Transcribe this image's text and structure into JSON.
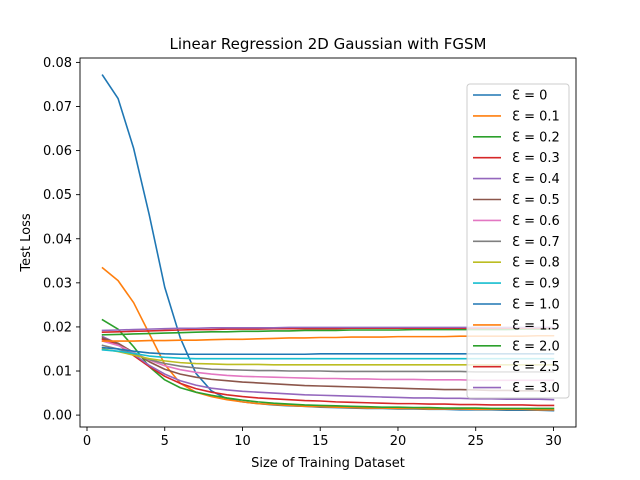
{
  "chart_data": {
    "type": "line",
    "title": "Linear Regression 2D Gaussian with FGSM",
    "xlabel": "Size of Training Dataset",
    "ylabel": "Test Loss",
    "xlim": [
      -0.45,
      31.45
    ],
    "ylim": [
      -0.0027,
      0.081
    ],
    "xticks": [
      0,
      5,
      10,
      15,
      20,
      25,
      30
    ],
    "yticks": [
      0.0,
      0.01,
      0.02,
      0.03,
      0.04,
      0.05,
      0.06,
      0.07,
      0.08
    ],
    "ytick_labels": [
      "0.00",
      "0.01",
      "0.02",
      "0.03",
      "0.04",
      "0.05",
      "0.06",
      "0.07",
      "0.08"
    ],
    "grid": false,
    "legend_position": "right",
    "x": [
      1,
      2,
      3,
      4,
      5,
      6,
      7,
      8,
      9,
      10,
      11,
      12,
      13,
      14,
      15,
      16,
      17,
      18,
      19,
      20,
      21,
      22,
      23,
      24,
      25,
      26,
      27,
      28,
      29,
      30
    ],
    "series": [
      {
        "name": "Ɛ = 0",
        "color": "#1f77b4",
        "values": [
          0.0771,
          0.0718,
          0.0605,
          0.0455,
          0.029,
          0.0175,
          0.0095,
          0.0055,
          0.0037,
          0.003,
          0.0026,
          0.0023,
          0.0021,
          0.002,
          0.0018,
          0.0017,
          0.0016,
          0.0015,
          0.0015,
          0.0014,
          0.0014,
          0.0013,
          0.0013,
          0.0012,
          0.0012,
          0.0012,
          0.0011,
          0.0011,
          0.0011,
          0.001
        ]
      },
      {
        "name": "Ɛ = 0.1",
        "color": "#ff7f0e",
        "values": [
          0.0334,
          0.0305,
          0.0255,
          0.0185,
          0.0115,
          0.0072,
          0.0052,
          0.0042,
          0.0035,
          0.003,
          0.0026,
          0.0024,
          0.0022,
          0.002,
          0.0019,
          0.0018,
          0.0017,
          0.0016,
          0.0016,
          0.0015,
          0.0015,
          0.0014,
          0.0014,
          0.0014,
          0.0013,
          0.0013,
          0.0013,
          0.0013,
          0.0012,
          0.0012
        ]
      },
      {
        "name": "Ɛ = 0.2",
        "color": "#2ca02c",
        "values": [
          0.0216,
          0.0195,
          0.0155,
          0.011,
          0.008,
          0.0062,
          0.0052,
          0.0045,
          0.0039,
          0.0034,
          0.003,
          0.0027,
          0.0025,
          0.0023,
          0.0022,
          0.0021,
          0.002,
          0.0019,
          0.0018,
          0.0018,
          0.0017,
          0.0017,
          0.0016,
          0.0016,
          0.0016,
          0.0015,
          0.0015,
          0.0015,
          0.0015,
          0.0015
        ]
      },
      {
        "name": "Ɛ = 0.3",
        "color": "#d62728",
        "values": [
          0.0172,
          0.016,
          0.0135,
          0.011,
          0.0088,
          0.0072,
          0.006,
          0.0052,
          0.0046,
          0.0042,
          0.0039,
          0.0037,
          0.0035,
          0.0033,
          0.0032,
          0.003,
          0.0029,
          0.0028,
          0.0027,
          0.0026,
          0.0026,
          0.0025,
          0.0025,
          0.0024,
          0.0024,
          0.0023,
          0.0023,
          0.0023,
          0.0022,
          0.0022
        ]
      },
      {
        "name": "Ɛ = 0.4",
        "color": "#9467bd",
        "values": [
          0.0178,
          0.0162,
          0.0138,
          0.0113,
          0.0093,
          0.0078,
          0.0068,
          0.0061,
          0.0057,
          0.0054,
          0.0052,
          0.005,
          0.0048,
          0.0046,
          0.0045,
          0.0044,
          0.0043,
          0.0042,
          0.0041,
          0.004,
          0.0039,
          0.0039,
          0.0038,
          0.0038,
          0.0037,
          0.0037,
          0.0036,
          0.0036,
          0.0036,
          0.0035
        ]
      },
      {
        "name": "Ɛ = 0.5",
        "color": "#8c564b",
        "values": [
          0.0175,
          0.0163,
          0.0142,
          0.0121,
          0.0104,
          0.0093,
          0.0086,
          0.0081,
          0.0078,
          0.0075,
          0.0073,
          0.0071,
          0.0069,
          0.0067,
          0.0066,
          0.0065,
          0.0064,
          0.0063,
          0.0062,
          0.0061,
          0.006,
          0.0059,
          0.0058,
          0.0058,
          0.0057,
          0.0056,
          0.0056,
          0.0055,
          0.0055,
          0.0055
        ]
      },
      {
        "name": "Ɛ = 0.6",
        "color": "#e377c2",
        "values": [
          0.0168,
          0.0158,
          0.0142,
          0.0125,
          0.0112,
          0.0103,
          0.0097,
          0.0093,
          0.009,
          0.0088,
          0.0087,
          0.0086,
          0.0085,
          0.0084,
          0.0083,
          0.0083,
          0.0082,
          0.0082,
          0.0081,
          0.0081,
          0.0081,
          0.008,
          0.008,
          0.008,
          0.0079,
          0.0079,
          0.0079,
          0.0079,
          0.0079,
          0.0079
        ]
      },
      {
        "name": "Ɛ = 0.7",
        "color": "#7f7f7f",
        "values": [
          0.0158,
          0.015,
          0.0138,
          0.0126,
          0.0117,
          0.0111,
          0.0107,
          0.0104,
          0.0103,
          0.0102,
          0.0101,
          0.0101,
          0.01,
          0.01,
          0.01,
          0.0099,
          0.0099,
          0.0099,
          0.0099,
          0.0099,
          0.0099,
          0.0099,
          0.0099,
          0.0099,
          0.0098,
          0.0098,
          0.0098,
          0.0098,
          0.0098,
          0.0098
        ]
      },
      {
        "name": "Ɛ = 0.8",
        "color": "#bcbd22",
        "values": [
          0.015,
          0.0144,
          0.0136,
          0.0128,
          0.0123,
          0.0119,
          0.0117,
          0.0116,
          0.0115,
          0.0115,
          0.0115,
          0.0114,
          0.0114,
          0.0114,
          0.0114,
          0.0114,
          0.0114,
          0.0114,
          0.0114,
          0.0114,
          0.0114,
          0.0114,
          0.0114,
          0.0114,
          0.0114,
          0.0114,
          0.0114,
          0.0114,
          0.0114,
          0.0114
        ]
      },
      {
        "name": "Ɛ = 0.9",
        "color": "#17becf",
        "values": [
          0.0148,
          0.0145,
          0.014,
          0.0134,
          0.0131,
          0.0129,
          0.0128,
          0.0128,
          0.0128,
          0.0128,
          0.0128,
          0.0128,
          0.0128,
          0.0128,
          0.0128,
          0.0128,
          0.0128,
          0.0128,
          0.0128,
          0.0128,
          0.0128,
          0.0128,
          0.0128,
          0.0128,
          0.0128,
          0.0128,
          0.0128,
          0.0128,
          0.0128,
          0.0128
        ]
      },
      {
        "name": "Ɛ = 1.0",
        "color": "#1f77b4",
        "values": [
          0.0153,
          0.015,
          0.0145,
          0.0141,
          0.0139,
          0.0138,
          0.0138,
          0.0138,
          0.0138,
          0.0138,
          0.0138,
          0.0138,
          0.0138,
          0.0138,
          0.0139,
          0.0139,
          0.0139,
          0.0139,
          0.0139,
          0.0139,
          0.0139,
          0.0139,
          0.0139,
          0.0139,
          0.0139,
          0.0139,
          0.0139,
          0.0139,
          0.0139,
          0.0139
        ]
      },
      {
        "name": "Ɛ = 1.5",
        "color": "#ff7f0e",
        "values": [
          0.0168,
          0.0168,
          0.0168,
          0.0169,
          0.0169,
          0.017,
          0.017,
          0.0171,
          0.0172,
          0.0172,
          0.0173,
          0.0174,
          0.0175,
          0.0175,
          0.0176,
          0.0176,
          0.0177,
          0.0177,
          0.0177,
          0.0178,
          0.0178,
          0.0178,
          0.0178,
          0.0179,
          0.0179,
          0.0179,
          0.0179,
          0.0179,
          0.018,
          0.018
        ]
      },
      {
        "name": "Ɛ = 2.0",
        "color": "#2ca02c",
        "values": [
          0.0182,
          0.0183,
          0.0184,
          0.0185,
          0.0186,
          0.0187,
          0.0188,
          0.0189,
          0.0189,
          0.019,
          0.019,
          0.0191,
          0.0191,
          0.0192,
          0.0192,
          0.0192,
          0.0193,
          0.0193,
          0.0193,
          0.0193,
          0.0194,
          0.0194,
          0.0194,
          0.0194,
          0.0194,
          0.0194,
          0.0194,
          0.0195,
          0.0195,
          0.0195
        ]
      },
      {
        "name": "Ɛ = 2.5",
        "color": "#d62728",
        "values": [
          0.0188,
          0.0189,
          0.019,
          0.0191,
          0.0192,
          0.0193,
          0.0194,
          0.0194,
          0.0195,
          0.0195,
          0.0195,
          0.0196,
          0.0196,
          0.0196,
          0.0196,
          0.0196,
          0.0197,
          0.0197,
          0.0197,
          0.0197,
          0.0197,
          0.0197,
          0.0197,
          0.0197,
          0.0197,
          0.0197,
          0.0197,
          0.0197,
          0.0197,
          0.0197
        ]
      },
      {
        "name": "Ɛ = 3.0",
        "color": "#9467bd",
        "values": [
          0.0192,
          0.0193,
          0.0194,
          0.0195,
          0.0196,
          0.0197,
          0.0197,
          0.0198,
          0.0198,
          0.0198,
          0.0198,
          0.0198,
          0.0199,
          0.0199,
          0.0199,
          0.0199,
          0.0199,
          0.0199,
          0.0199,
          0.0199,
          0.0199,
          0.0199,
          0.0199,
          0.0199,
          0.0199,
          0.0199,
          0.0199,
          0.0199,
          0.0199,
          0.0199
        ]
      }
    ]
  }
}
